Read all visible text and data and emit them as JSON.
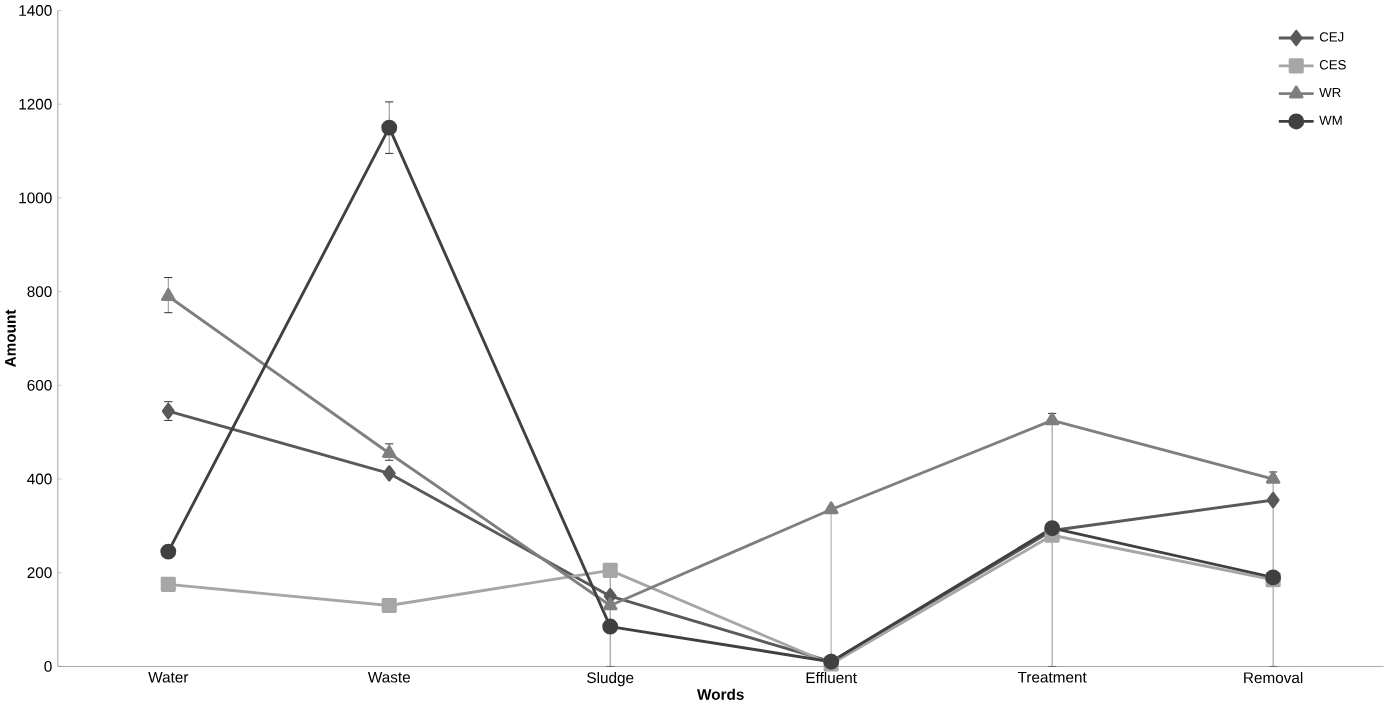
{
  "chart_data": {
    "type": "line",
    "xlabel": "Words",
    "ylabel": "Amount",
    "categories": [
      "Water",
      "Waste",
      "Sludge",
      "Effluent",
      "Treatment",
      "Removal"
    ],
    "ylim": [
      0,
      1400
    ],
    "yticks": [
      0,
      200,
      400,
      600,
      800,
      1000,
      1200,
      1400
    ],
    "legend": "top right",
    "grid": false,
    "line_style": "solid",
    "series": [
      {
        "name": "CEJ",
        "color": "#595959",
        "marker": "diamond",
        "values": [
          545,
          412,
          150,
          10,
          290,
          355
        ],
        "errors": [
          [
            525,
            565
          ],
          null,
          null,
          null,
          null,
          null
        ]
      },
      {
        "name": "CES",
        "color": "#a6a6a6",
        "marker": "square",
        "values": [
          175,
          130,
          205,
          5,
          280,
          185
        ],
        "errors": [
          null,
          null,
          [
            0,
            205
          ],
          null,
          null,
          null
        ]
      },
      {
        "name": "WR",
        "color": "#7f7f7f",
        "marker": "triangle",
        "values": [
          790,
          455,
          130,
          335,
          525,
          400
        ],
        "errors": [
          [
            755,
            830
          ],
          [
            440,
            475
          ],
          null,
          [
            0,
            340
          ],
          [
            0,
            540
          ],
          [
            0,
            415
          ]
        ]
      },
      {
        "name": "WM",
        "color": "#404040",
        "marker": "circle",
        "values": [
          245,
          1150,
          85,
          10,
          295,
          190
        ],
        "errors": [
          null,
          [
            1095,
            1205
          ],
          null,
          null,
          null,
          null
        ]
      }
    ]
  }
}
